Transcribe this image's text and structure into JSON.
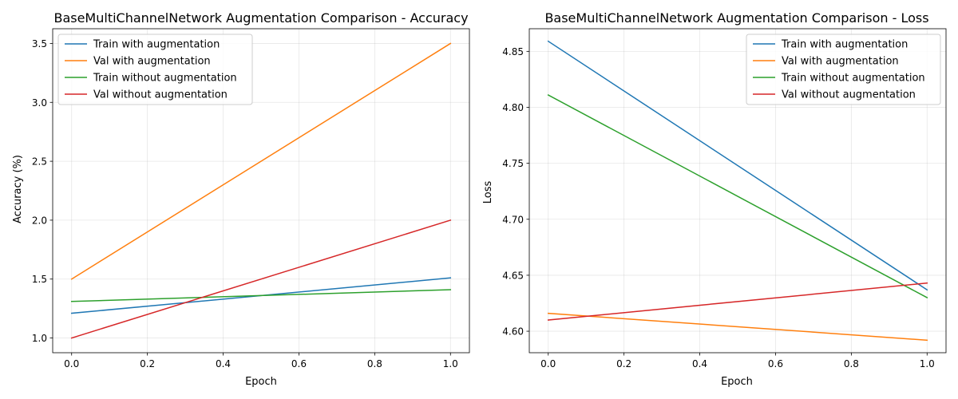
{
  "chart_data": [
    {
      "type": "line",
      "title": "BaseMultiChannelNetwork Augmentation Comparison - Accuracy",
      "xlabel": "Epoch",
      "ylabel": "Accuracy (%)",
      "x": [
        0,
        1
      ],
      "xlim": [
        -0.05,
        1.05
      ],
      "ylim": [
        0.875,
        3.625
      ],
      "xticks": [
        "0.0",
        "0.2",
        "0.4",
        "0.6",
        "0.8",
        "1.0"
      ],
      "yticks": [
        "1.0",
        "1.5",
        "2.0",
        "2.5",
        "3.0",
        "3.5"
      ],
      "grid": true,
      "legend_position": "upper-left",
      "series": [
        {
          "name": "Train with augmentation",
          "color": "#1f77b4",
          "values": [
            1.21,
            1.51
          ]
        },
        {
          "name": "Val with augmentation",
          "color": "#ff7f0e",
          "values": [
            1.5,
            3.5
          ]
        },
        {
          "name": "Train without augmentation",
          "color": "#2ca02c",
          "values": [
            1.31,
            1.41
          ]
        },
        {
          "name": "Val without augmentation",
          "color": "#d62728",
          "values": [
            1.0,
            2.0
          ]
        }
      ]
    },
    {
      "type": "line",
      "title": "BaseMultiChannelNetwork Augmentation Comparison - Loss",
      "xlabel": "Epoch",
      "ylabel": "Loss",
      "x": [
        0,
        1
      ],
      "xlim": [
        -0.05,
        1.05
      ],
      "ylim": [
        4.5808,
        4.8702
      ],
      "xticks": [
        "0.0",
        "0.2",
        "0.4",
        "0.6",
        "0.8",
        "1.0"
      ],
      "yticks": [
        "4.60",
        "4.65",
        "4.70",
        "4.75",
        "4.80",
        "4.85"
      ],
      "grid": true,
      "legend_position": "upper-right",
      "series": [
        {
          "name": "Train with augmentation",
          "color": "#1f77b4",
          "values": [
            4.859,
            4.637
          ]
        },
        {
          "name": "Val with augmentation",
          "color": "#ff7f0e",
          "values": [
            4.616,
            4.592
          ]
        },
        {
          "name": "Train without augmentation",
          "color": "#2ca02c",
          "values": [
            4.811,
            4.63
          ]
        },
        {
          "name": "Val without augmentation",
          "color": "#d62728",
          "values": [
            4.61,
            4.643
          ]
        }
      ]
    }
  ]
}
